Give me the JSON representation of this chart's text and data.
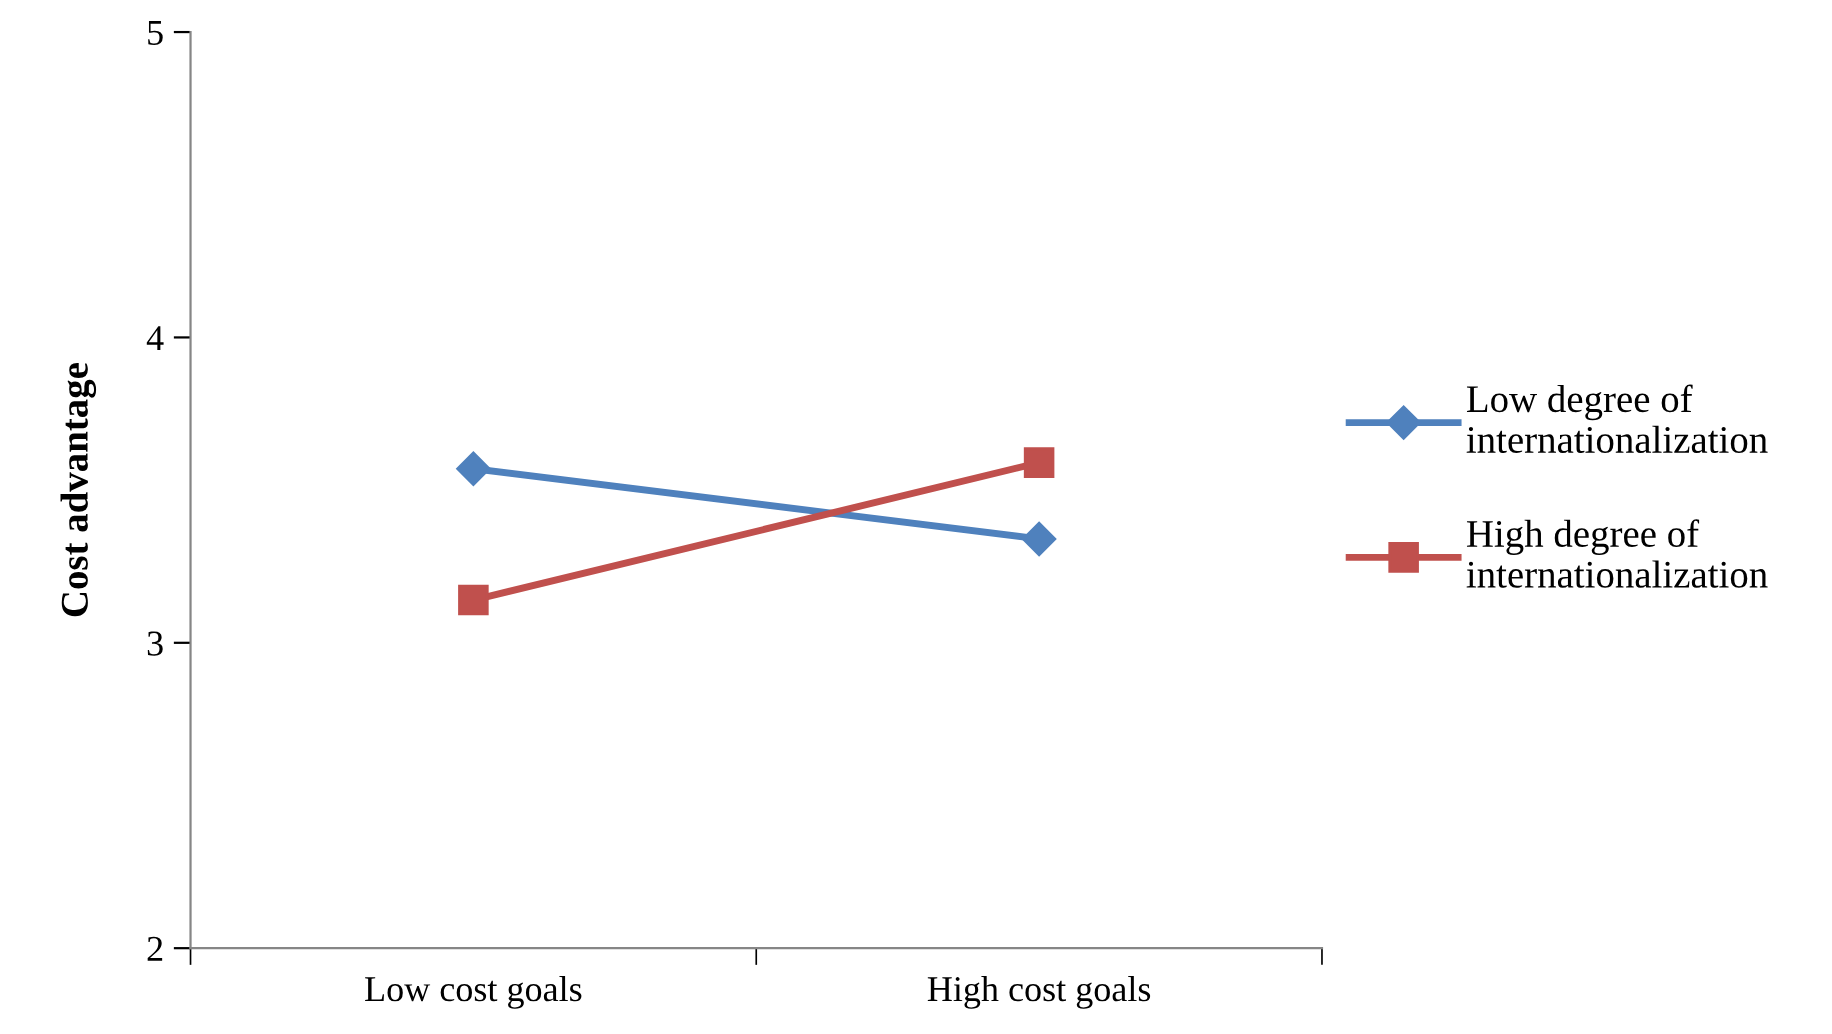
{
  "chart_data": {
    "type": "line",
    "ylabel": "Cost advantage",
    "categories": [
      "Low cost goals",
      "High cost goals"
    ],
    "series": [
      {
        "name": "Low degree of internationalization",
        "color": "#4f81bd",
        "marker": "diamond",
        "values": [
          3.57,
          3.34
        ]
      },
      {
        "name": "High degree of internationalization",
        "color": "#c0504d",
        "marker": "square",
        "values": [
          3.14,
          3.59
        ]
      }
    ],
    "ylim": [
      2,
      5
    ],
    "yticks": [
      2,
      3,
      4,
      5
    ],
    "grid": false,
    "legend": "right",
    "line_style": "solid"
  }
}
